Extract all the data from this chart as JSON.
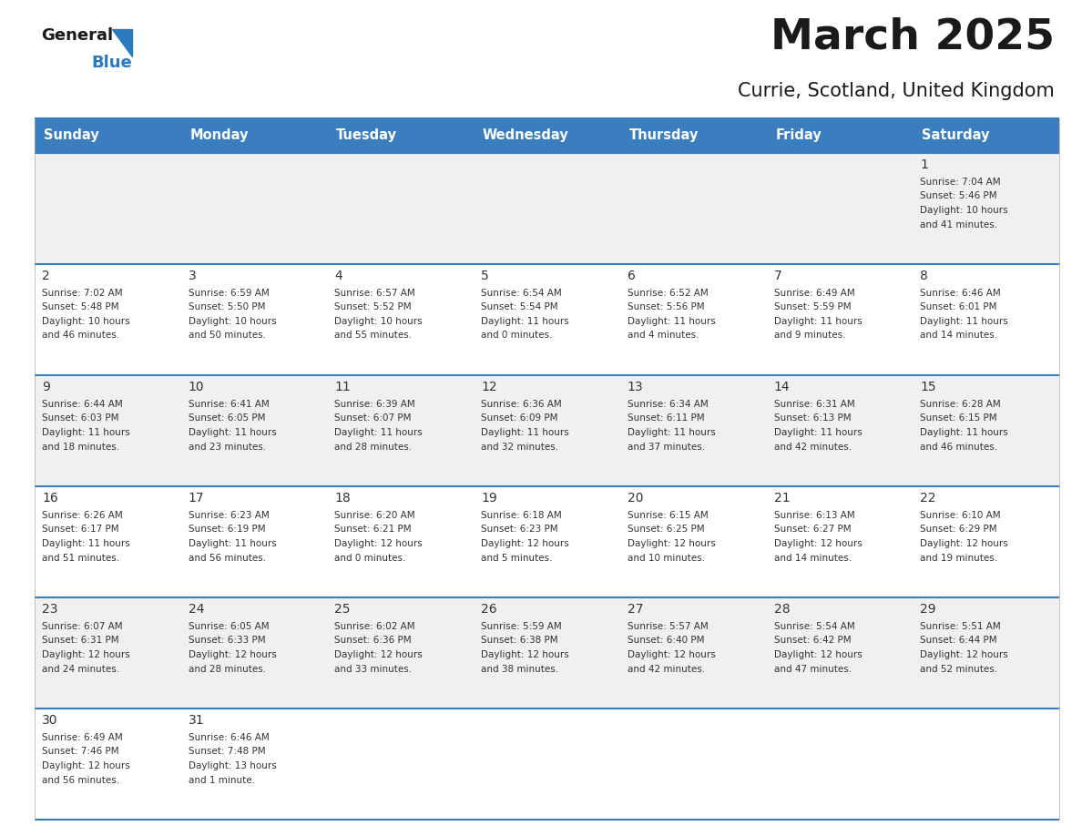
{
  "title": "March 2025",
  "subtitle": "Currie, Scotland, United Kingdom",
  "days_of_week": [
    "Sunday",
    "Monday",
    "Tuesday",
    "Wednesday",
    "Thursday",
    "Friday",
    "Saturday"
  ],
  "header_bg": "#3a7ebf",
  "header_text": "#ffffff",
  "row_bg_odd": "#f0f0f0",
  "row_bg_even": "#ffffff",
  "border_color": "#3a7ebf",
  "day_number_color": "#333333",
  "text_color": "#333333",
  "title_color": "#1a1a1a",
  "logo_black_color": "#1a1a1a",
  "logo_blue_color": "#2a7abf",
  "calendar": [
    [
      null,
      null,
      null,
      null,
      null,
      null,
      {
        "day": 1,
        "sunrise": "7:04 AM",
        "sunset": "5:46 PM",
        "daylight": "10 hours",
        "daylight2": "and 41 minutes."
      }
    ],
    [
      {
        "day": 2,
        "sunrise": "7:02 AM",
        "sunset": "5:48 PM",
        "daylight": "10 hours",
        "daylight2": "and 46 minutes."
      },
      {
        "day": 3,
        "sunrise": "6:59 AM",
        "sunset": "5:50 PM",
        "daylight": "10 hours",
        "daylight2": "and 50 minutes."
      },
      {
        "day": 4,
        "sunrise": "6:57 AM",
        "sunset": "5:52 PM",
        "daylight": "10 hours",
        "daylight2": "and 55 minutes."
      },
      {
        "day": 5,
        "sunrise": "6:54 AM",
        "sunset": "5:54 PM",
        "daylight": "11 hours",
        "daylight2": "and 0 minutes."
      },
      {
        "day": 6,
        "sunrise": "6:52 AM",
        "sunset": "5:56 PM",
        "daylight": "11 hours",
        "daylight2": "and 4 minutes."
      },
      {
        "day": 7,
        "sunrise": "6:49 AM",
        "sunset": "5:59 PM",
        "daylight": "11 hours",
        "daylight2": "and 9 minutes."
      },
      {
        "day": 8,
        "sunrise": "6:46 AM",
        "sunset": "6:01 PM",
        "daylight": "11 hours",
        "daylight2": "and 14 minutes."
      }
    ],
    [
      {
        "day": 9,
        "sunrise": "6:44 AM",
        "sunset": "6:03 PM",
        "daylight": "11 hours",
        "daylight2": "and 18 minutes."
      },
      {
        "day": 10,
        "sunrise": "6:41 AM",
        "sunset": "6:05 PM",
        "daylight": "11 hours",
        "daylight2": "and 23 minutes."
      },
      {
        "day": 11,
        "sunrise": "6:39 AM",
        "sunset": "6:07 PM",
        "daylight": "11 hours",
        "daylight2": "and 28 minutes."
      },
      {
        "day": 12,
        "sunrise": "6:36 AM",
        "sunset": "6:09 PM",
        "daylight": "11 hours",
        "daylight2": "and 32 minutes."
      },
      {
        "day": 13,
        "sunrise": "6:34 AM",
        "sunset": "6:11 PM",
        "daylight": "11 hours",
        "daylight2": "and 37 minutes."
      },
      {
        "day": 14,
        "sunrise": "6:31 AM",
        "sunset": "6:13 PM",
        "daylight": "11 hours",
        "daylight2": "and 42 minutes."
      },
      {
        "day": 15,
        "sunrise": "6:28 AM",
        "sunset": "6:15 PM",
        "daylight": "11 hours",
        "daylight2": "and 46 minutes."
      }
    ],
    [
      {
        "day": 16,
        "sunrise": "6:26 AM",
        "sunset": "6:17 PM",
        "daylight": "11 hours",
        "daylight2": "and 51 minutes."
      },
      {
        "day": 17,
        "sunrise": "6:23 AM",
        "sunset": "6:19 PM",
        "daylight": "11 hours",
        "daylight2": "and 56 minutes."
      },
      {
        "day": 18,
        "sunrise": "6:20 AM",
        "sunset": "6:21 PM",
        "daylight": "12 hours",
        "daylight2": "and 0 minutes."
      },
      {
        "day": 19,
        "sunrise": "6:18 AM",
        "sunset": "6:23 PM",
        "daylight": "12 hours",
        "daylight2": "and 5 minutes."
      },
      {
        "day": 20,
        "sunrise": "6:15 AM",
        "sunset": "6:25 PM",
        "daylight": "12 hours",
        "daylight2": "and 10 minutes."
      },
      {
        "day": 21,
        "sunrise": "6:13 AM",
        "sunset": "6:27 PM",
        "daylight": "12 hours",
        "daylight2": "and 14 minutes."
      },
      {
        "day": 22,
        "sunrise": "6:10 AM",
        "sunset": "6:29 PM",
        "daylight": "12 hours",
        "daylight2": "and 19 minutes."
      }
    ],
    [
      {
        "day": 23,
        "sunrise": "6:07 AM",
        "sunset": "6:31 PM",
        "daylight": "12 hours",
        "daylight2": "and 24 minutes."
      },
      {
        "day": 24,
        "sunrise": "6:05 AM",
        "sunset": "6:33 PM",
        "daylight": "12 hours",
        "daylight2": "and 28 minutes."
      },
      {
        "day": 25,
        "sunrise": "6:02 AM",
        "sunset": "6:36 PM",
        "daylight": "12 hours",
        "daylight2": "and 33 minutes."
      },
      {
        "day": 26,
        "sunrise": "5:59 AM",
        "sunset": "6:38 PM",
        "daylight": "12 hours",
        "daylight2": "and 38 minutes."
      },
      {
        "day": 27,
        "sunrise": "5:57 AM",
        "sunset": "6:40 PM",
        "daylight": "12 hours",
        "daylight2": "and 42 minutes."
      },
      {
        "day": 28,
        "sunrise": "5:54 AM",
        "sunset": "6:42 PM",
        "daylight": "12 hours",
        "daylight2": "and 47 minutes."
      },
      {
        "day": 29,
        "sunrise": "5:51 AM",
        "sunset": "6:44 PM",
        "daylight": "12 hours",
        "daylight2": "and 52 minutes."
      }
    ],
    [
      {
        "day": 30,
        "sunrise": "6:49 AM",
        "sunset": "7:46 PM",
        "daylight": "12 hours",
        "daylight2": "and 56 minutes."
      },
      {
        "day": 31,
        "sunrise": "6:46 AM",
        "sunset": "7:48 PM",
        "daylight": "13 hours",
        "daylight2": "and 1 minute."
      },
      null,
      null,
      null,
      null,
      null
    ]
  ]
}
